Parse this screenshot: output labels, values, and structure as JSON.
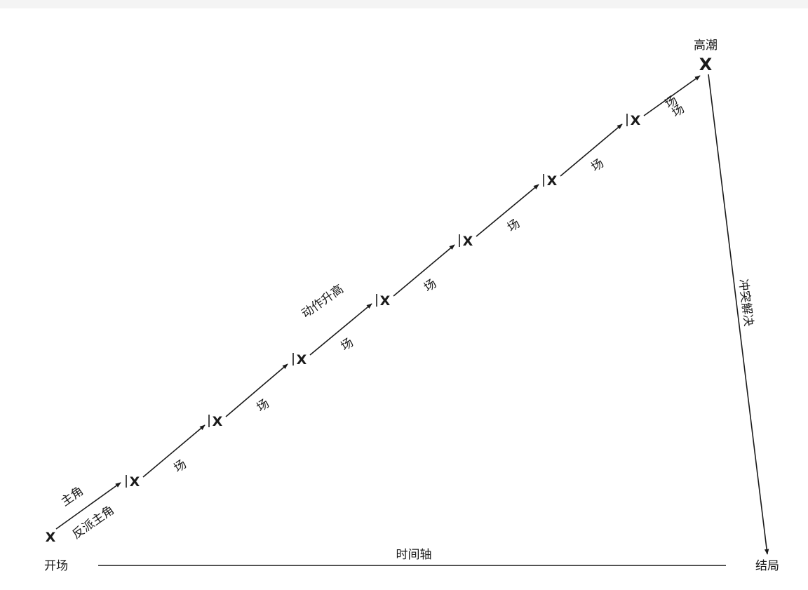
{
  "labels": {
    "protagonist": "主角",
    "antagonist": "反派主角",
    "rising_action": "动作升高",
    "climax": "高潮",
    "resolution": "冲突解决",
    "opening": "开场",
    "timeline": "时间轴",
    "ending": "结局"
  },
  "markers": {
    "start": "X",
    "climax": "X"
  },
  "scenes": [
    {
      "mark": "X",
      "label": "场"
    },
    {
      "mark": "X",
      "label": "场"
    },
    {
      "mark": "X",
      "label": "场"
    },
    {
      "mark": "X",
      "label": "场"
    },
    {
      "mark": "X",
      "label": "场"
    },
    {
      "mark": "X",
      "label": "场"
    },
    {
      "mark": "X",
      "label": "场"
    },
    {
      "mark": "X",
      "label": "场"
    }
  ],
  "colors": {
    "ink": "#1a1a1a",
    "background": "#ffffff"
  }
}
